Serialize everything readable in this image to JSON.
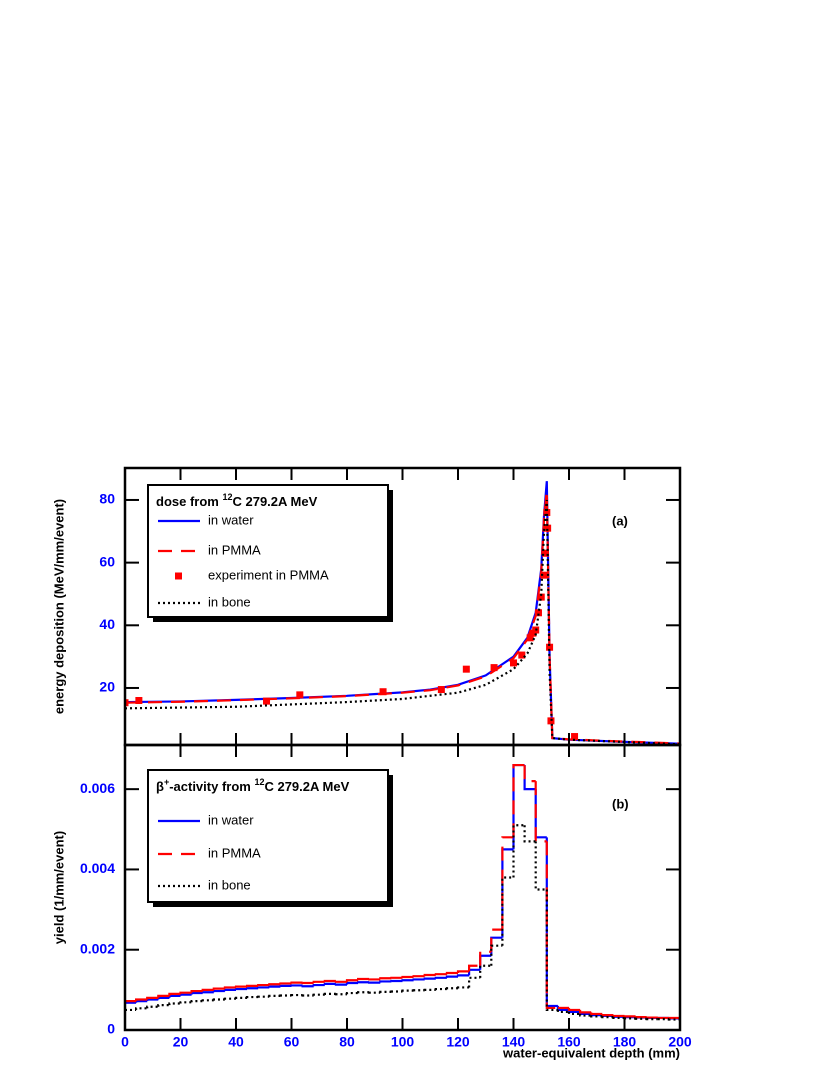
{
  "chart_data": [
    {
      "type": "line",
      "legend_title": [
        "dose from ",
        "12",
        "C 279.2A MeV"
      ],
      "panel_label": "(a)",
      "ylabel": "energy deposition (MeV/mm/event)",
      "xlim": [
        0,
        200
      ],
      "ylim": [
        1.8,
        90.2
      ],
      "xticks": [
        0,
        20,
        40,
        60,
        80,
        100,
        120,
        140,
        160,
        180,
        200
      ],
      "yticks": [
        20,
        40,
        60,
        80
      ],
      "show_xtick_labels": false,
      "series": [
        {
          "name": "in water",
          "color": "#0000ff",
          "style": "solid",
          "x": [
            0,
            20,
            40,
            60,
            80,
            100,
            110,
            120,
            130,
            140,
            145,
            148,
            150,
            151,
            152,
            153,
            154,
            160,
            180,
            200
          ],
          "values": [
            15.5,
            15.7,
            16.2,
            16.8,
            17.5,
            18.6,
            19.5,
            21,
            24,
            30,
            36,
            44,
            58,
            75,
            86,
            30,
            4,
            3.5,
            2.8,
            2.2
          ]
        },
        {
          "name": "in PMMA",
          "color": "#ff0000",
          "style": "dashed",
          "x": [
            0,
            20,
            40,
            60,
            80,
            100,
            110,
            120,
            130,
            140,
            145,
            148,
            150,
            151,
            152,
            153,
            154,
            160,
            180,
            200
          ],
          "values": [
            15.3,
            15.6,
            16.1,
            16.7,
            17.4,
            18.5,
            19.3,
            20.8,
            23.7,
            29.5,
            35.5,
            43,
            57,
            74,
            83,
            30,
            4,
            3.6,
            2.9,
            2.3
          ]
        },
        {
          "name": "experiment in PMMA",
          "color": "#ff0000",
          "style": "markers",
          "x": [
            0,
            5,
            51,
            63,
            93,
            114,
            123,
            133,
            140,
            143,
            146,
            147,
            148,
            149,
            150,
            151,
            151.5,
            152,
            152.3,
            153,
            153.5,
            162
          ],
          "values": [
            15.3,
            16,
            15.8,
            17.8,
            18.8,
            19.5,
            26,
            26.5,
            28,
            30.5,
            36,
            37.5,
            38.5,
            44,
            49,
            56,
            63,
            76,
            71,
            33,
            9.5,
            4.5
          ]
        },
        {
          "name": "in bone",
          "color": "#000000",
          "style": "dotted",
          "x": [
            0,
            40,
            80,
            100,
            120,
            130,
            140,
            145,
            148,
            150,
            151,
            152,
            153,
            154,
            160,
            200
          ],
          "values": [
            13.5,
            14,
            15.5,
            16.5,
            18.5,
            21,
            26,
            31,
            37,
            50,
            70,
            80,
            25,
            4,
            3.5,
            2
          ]
        }
      ]
    },
    {
      "type": "histogram",
      "legend_title": [
        "β",
        "+",
        "-activity from ",
        "12",
        "C 279.2A MeV"
      ],
      "panel_label": "(b)",
      "ylabel": "yield (1/mm/event)",
      "xlabel": "water-equivalent depth (mm)",
      "xlim": [
        0,
        200
      ],
      "ylim": [
        0,
        0.0071
      ],
      "xticks": [
        0,
        20,
        40,
        60,
        80,
        100,
        120,
        140,
        160,
        180,
        200
      ],
      "yticks": [
        0,
        0.002,
        0.004,
        0.006
      ],
      "show_xtick_labels": true,
      "bins": [
        0,
        4,
        8,
        12,
        16,
        20,
        24,
        28,
        32,
        36,
        40,
        44,
        48,
        52,
        56,
        60,
        64,
        68,
        72,
        76,
        80,
        84,
        88,
        92,
        96,
        100,
        104,
        108,
        112,
        116,
        120,
        124,
        128,
        132,
        136,
        140,
        144,
        148,
        152,
        156,
        160,
        164,
        168,
        172,
        176,
        180,
        184,
        188,
        192,
        196,
        200
      ],
      "series": [
        {
          "name": "in water",
          "color": "#0000ff",
          "style": "solid",
          "values": [
            0.00068,
            0.00072,
            0.00076,
            0.0008,
            0.00085,
            0.00088,
            0.00092,
            0.00094,
            0.00097,
            0.001,
            0.00102,
            0.00104,
            0.00106,
            0.00108,
            0.0011,
            0.00111,
            0.00109,
            0.00112,
            0.00115,
            0.00113,
            0.00117,
            0.00119,
            0.00118,
            0.00121,
            0.00122,
            0.00124,
            0.00126,
            0.00128,
            0.0013,
            0.00133,
            0.00136,
            0.0015,
            0.00185,
            0.0023,
            0.0045,
            0.0066,
            0.006,
            0.0048,
            0.0006,
            0.0005,
            0.00045,
            0.0004,
            0.00037,
            0.00035,
            0.00033,
            0.00032,
            0.00031,
            0.0003,
            0.0003,
            0.00029
          ]
        },
        {
          "name": "in PMMA",
          "color": "#ff0000",
          "style": "dashed",
          "values": [
            0.00072,
            0.00076,
            0.0008,
            0.00085,
            0.0009,
            0.00093,
            0.00097,
            0.001,
            0.00103,
            0.00106,
            0.00108,
            0.0011,
            0.00112,
            0.00114,
            0.00116,
            0.00118,
            0.00117,
            0.0012,
            0.00122,
            0.0012,
            0.00124,
            0.00127,
            0.00126,
            0.00129,
            0.0013,
            0.00132,
            0.00134,
            0.00137,
            0.00139,
            0.00142,
            0.00146,
            0.0016,
            0.00195,
            0.0025,
            0.0048,
            0.0066,
            0.0062,
            0.0047,
            0.00055,
            0.00055,
            0.0005,
            0.00044,
            0.0004,
            0.00037,
            0.00035,
            0.00034,
            0.00032,
            0.00031,
            0.0003,
            0.0003
          ]
        },
        {
          "name": "in bone",
          "color": "#000000",
          "style": "dotted",
          "values": [
            0.0005,
            0.00054,
            0.00058,
            0.00062,
            0.00066,
            0.00069,
            0.00072,
            0.00074,
            0.00076,
            0.00078,
            0.0008,
            0.00082,
            0.00083,
            0.00085,
            0.00086,
            0.00087,
            0.00086,
            0.00088,
            0.0009,
            0.00089,
            0.00092,
            0.00094,
            0.00093,
            0.00095,
            0.00096,
            0.00098,
            0.00099,
            0.001,
            0.00102,
            0.00104,
            0.00106,
            0.0013,
            0.0016,
            0.0021,
            0.0038,
            0.0051,
            0.0047,
            0.0035,
            0.0005,
            0.00045,
            0.0004,
            0.00036,
            0.00034,
            0.00032,
            0.0003,
            0.00029,
            0.00028,
            0.00027,
            0.00027,
            0.00026
          ]
        }
      ]
    }
  ]
}
